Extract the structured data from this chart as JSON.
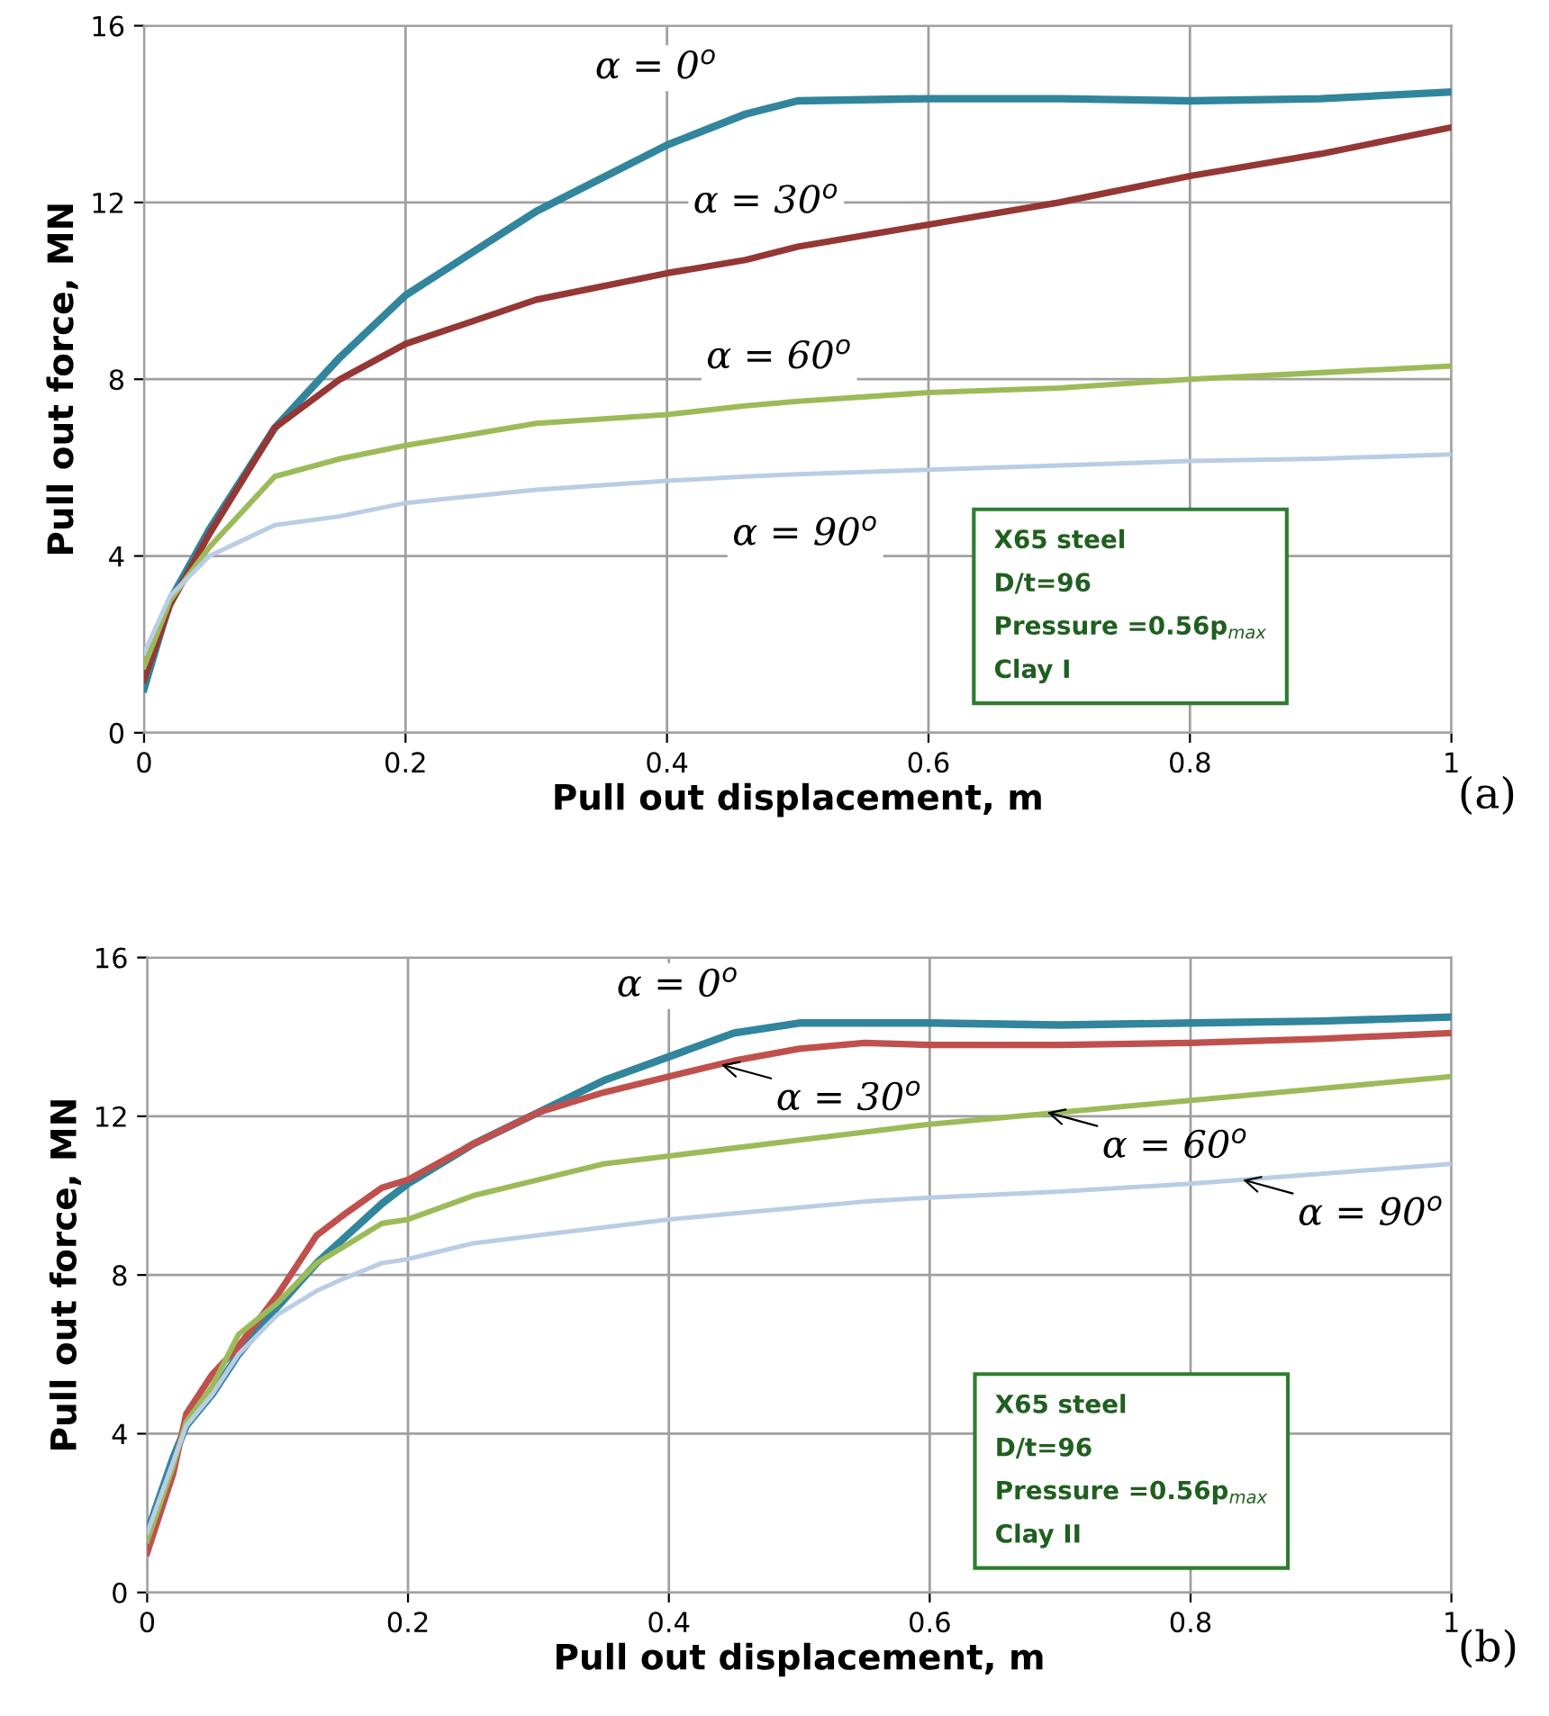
{
  "chart_data": [
    {
      "type": "line",
      "xlabel": "Pull out displacement, m",
      "ylabel": "Pull out force, MN",
      "x": [
        0,
        0.02,
        0.05,
        0.1,
        0.15,
        0.2,
        0.3,
        0.4,
        0.46,
        0.5,
        0.6,
        0.7,
        0.8,
        0.9,
        1.0
      ],
      "series": [
        {
          "color": "#31859c",
          "values": [
            1.0,
            3.0,
            4.6,
            6.9,
            8.5,
            9.9,
            11.8,
            13.3,
            14.0,
            14.3,
            14.35,
            14.35,
            14.3,
            14.35,
            14.5
          ]
        },
        {
          "color": "#953735",
          "values": [
            1.2,
            2.9,
            4.5,
            6.9,
            8.0,
            8.8,
            9.8,
            10.4,
            10.7,
            11.0,
            11.5,
            12.0,
            12.6,
            13.1,
            13.7
          ]
        },
        {
          "color": "#9bbb59",
          "values": [
            1.5,
            3.0,
            4.2,
            5.8,
            6.2,
            6.5,
            7.0,
            7.2,
            7.4,
            7.5,
            7.7,
            7.8,
            8.0,
            8.15,
            8.3
          ]
        },
        {
          "color": "#b9cde5",
          "values": [
            1.8,
            3.1,
            4.0,
            4.7,
            4.9,
            5.2,
            5.5,
            5.7,
            5.8,
            5.85,
            5.95,
            6.05,
            6.15,
            6.2,
            6.3
          ]
        }
      ],
      "xlim": [
        0,
        1
      ],
      "ylim": [
        0,
        16
      ],
      "xticks": [
        0,
        0.2,
        0.4,
        0.6,
        0.8,
        1
      ],
      "yticks": [
        0,
        4,
        8,
        12,
        16
      ],
      "grid": true,
      "marker": "none",
      "line_style": "solid",
      "annotations": [
        "α = 0$^{o}$",
        "α = 30$^{o}$",
        "α = 60$^{o}$",
        "α = 90$^{o}$",
        "X65 steel",
        "D/t=96",
        "Pressure =0.56p$_{max}$",
        "Clay I",
        "(a)"
      ]
    },
    {
      "type": "line",
      "xlabel": "Pull out displacement, m",
      "ylabel": "Pull out force, MN",
      "x": [
        0,
        0.02,
        0.03,
        0.05,
        0.07,
        0.1,
        0.13,
        0.15,
        0.18,
        0.2,
        0.25,
        0.3,
        0.35,
        0.4,
        0.45,
        0.5,
        0.55,
        0.6,
        0.7,
        0.8,
        0.9,
        1.0
      ],
      "series": [
        {
          "color": "#31859c",
          "values": [
            1.5,
            3.4,
            4.2,
            5.0,
            6.0,
            7.2,
            8.3,
            8.9,
            9.8,
            10.3,
            11.3,
            12.1,
            12.9,
            13.5,
            14.1,
            14.35,
            14.35,
            14.35,
            14.3,
            14.35,
            14.4,
            14.5
          ]
        },
        {
          "color": "#c0504d",
          "values": [
            1.0,
            3.0,
            4.5,
            5.5,
            6.2,
            7.5,
            9.0,
            9.5,
            10.2,
            10.4,
            11.3,
            12.1,
            12.6,
            13.0,
            13.4,
            13.7,
            13.85,
            13.8,
            13.8,
            13.85,
            13.95,
            14.1
          ]
        },
        {
          "color": "#9bbb59",
          "values": [
            1.3,
            3.2,
            4.3,
            5.2,
            6.5,
            7.3,
            8.3,
            8.7,
            9.3,
            9.4,
            10.0,
            10.4,
            10.8,
            11.0,
            11.2,
            11.4,
            11.6,
            11.8,
            12.1,
            12.4,
            12.7,
            13.0
          ]
        },
        {
          "color": "#b9cde5",
          "values": [
            1.5,
            3.3,
            4.2,
            5.0,
            6.0,
            7.0,
            7.6,
            7.9,
            8.3,
            8.4,
            8.8,
            9.0,
            9.2,
            9.4,
            9.55,
            9.7,
            9.85,
            9.95,
            10.1,
            10.3,
            10.55,
            10.8
          ]
        }
      ],
      "xlim": [
        0,
        1
      ],
      "ylim": [
        0,
        16
      ],
      "xticks": [
        0,
        0.2,
        0.4,
        0.6,
        0.8,
        1
      ],
      "yticks": [
        0,
        4,
        8,
        12,
        16
      ],
      "grid": true,
      "marker": "none",
      "line_style": "solid",
      "annotations": [
        "α = 0$^{o}$",
        {
          "text": "α = 30$^{o}$",
          "x": 0.44,
          "y": 13.3
        },
        {
          "text": "α = 60$^{o}$",
          "x": 0.69,
          "y": 12.1
        },
        {
          "text": "α = 90$^{o}$",
          "x": 0.84,
          "y": 10.4
        },
        "X65 steel",
        "D/t=96",
        "Pressure =0.56p$_{max}$",
        "Clay II",
        "(b)"
      ]
    }
  ]
}
